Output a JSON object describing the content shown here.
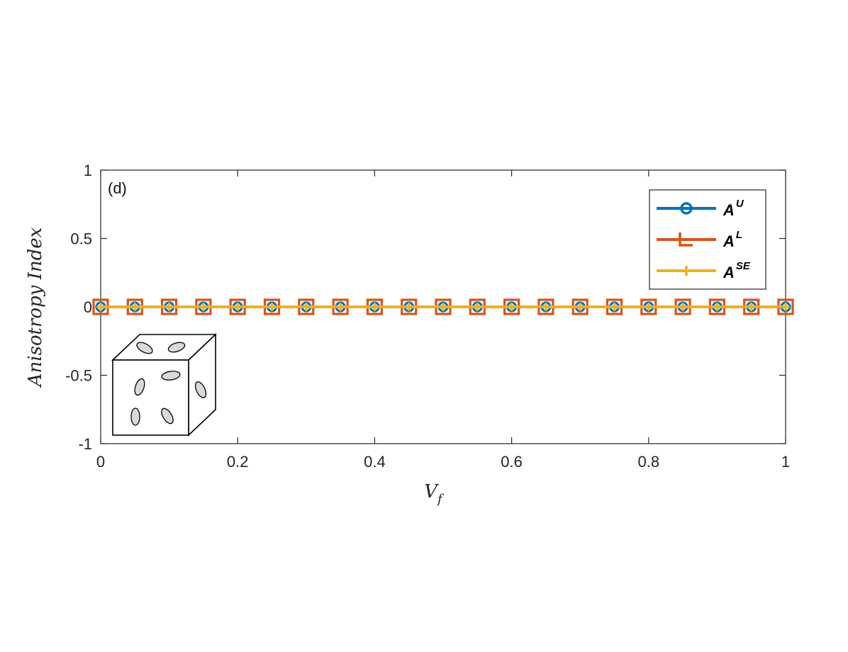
{
  "chart_data": {
    "type": "line",
    "panel_label": "(d)",
    "xlabel_main": "V",
    "xlabel_sub": "f",
    "ylabel": "Anisotropy Index",
    "xlim": [
      0,
      1
    ],
    "ylim": [
      -1,
      1
    ],
    "x_ticks": [
      "0",
      "0.2",
      "0.4",
      "0.6",
      "0.8",
      "1"
    ],
    "y_ticks": [
      "1",
      "0.5",
      "0",
      "-0.5",
      "-1"
    ],
    "x": [
      0,
      0.05,
      0.1,
      0.15,
      0.2,
      0.25,
      0.3,
      0.35,
      0.4,
      0.45,
      0.5,
      0.55,
      0.6,
      0.65,
      0.7,
      0.75,
      0.8,
      0.85,
      0.9,
      0.95,
      1
    ],
    "series": [
      {
        "name": "A",
        "sup": "U",
        "color": "#0072BD",
        "marker": "circle",
        "values": [
          0,
          0,
          0,
          0,
          0,
          0,
          0,
          0,
          0,
          0,
          0,
          0,
          0,
          0,
          0,
          0,
          0,
          0,
          0,
          0,
          0
        ]
      },
      {
        "name": "A",
        "sup": "L",
        "color": "#D95319",
        "marker": "square",
        "values": [
          0,
          0,
          0,
          0,
          0,
          0,
          0,
          0,
          0,
          0,
          0,
          0,
          0,
          0,
          0,
          0,
          0,
          0,
          0,
          0,
          0
        ]
      },
      {
        "name": "A",
        "sup": "SE",
        "color": "#EDB120",
        "marker": "plus",
        "values": [
          0,
          0,
          0,
          0,
          0,
          0,
          0,
          0,
          0,
          0,
          0,
          0,
          0,
          0,
          0,
          0,
          0,
          0,
          0,
          0,
          0
        ]
      }
    ],
    "legend_position": "top-right",
    "grid": false
  }
}
